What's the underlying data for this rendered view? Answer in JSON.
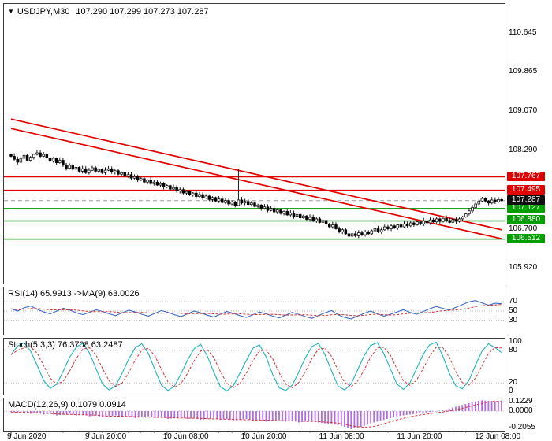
{
  "window": {
    "symbol_title": "USDJPY,M30",
    "ohlc_title": "107.290 107.299 107.273 107.287"
  },
  "colors": {
    "resistance": "#e00000",
    "support_line": "#009600",
    "support_tag": "#00a000",
    "candle": "#000000",
    "current_tag_bg": "#101010",
    "current_line": "#999999",
    "signal": "#d63333",
    "grid_dotted": "#b8b8b8"
  },
  "chart_data": [
    {
      "type": "candlestick",
      "symbol": "USDJPY",
      "timeframe": "M30",
      "y_axis_labels": [
        "110.645",
        "109.865",
        "109.070",
        "108.290",
        "106.700",
        "105.920"
      ],
      "resistance_levels": [
        "107.767",
        "107.495"
      ],
      "support_levels": [
        "107.127",
        "106.880",
        "106.512"
      ],
      "current_price": "107.287",
      "trendlines": [
        {
          "c1": 0,
          "p1": 108.93,
          "c2": 151,
          "p2": 106.7
        },
        {
          "c1": 0,
          "p1": 108.74,
          "c2": 151,
          "p2": 106.52
        }
      ],
      "x_labels": [
        {
          "text": "9 Jun 2020",
          "candle": 0
        },
        {
          "text": "9 Jun 20:00",
          "candle": 24
        },
        {
          "text": "10 Jun 08:00",
          "candle": 48
        },
        {
          "text": "10 Jun 20:00",
          "candle": 72
        },
        {
          "text": "11 Jun 08:00",
          "candle": 96
        },
        {
          "text": "11 Jun 20:00",
          "candle": 120
        },
        {
          "text": "12 Jun 08:00",
          "candle": 144
        }
      ],
      "open_first": 108.22,
      "wick_base": 0.018,
      "wick_step": 0.007,
      "overrides": {
        "70": {
          "high": 107.92
        }
      },
      "closes": [
        108.18,
        108.12,
        108.06,
        108.14,
        108.2,
        108.1,
        108.16,
        108.22,
        108.25,
        108.18,
        108.22,
        108.15,
        108.08,
        108.14,
        108.05,
        108.1,
        108.0,
        107.94,
        108.0,
        107.92,
        107.96,
        107.88,
        107.93,
        107.85,
        107.9,
        107.95,
        107.88,
        107.92,
        107.85,
        107.9,
        107.93,
        107.86,
        107.89,
        107.82,
        107.85,
        107.78,
        107.81,
        107.74,
        107.77,
        107.7,
        107.73,
        107.66,
        107.7,
        107.63,
        107.66,
        107.6,
        107.63,
        107.56,
        107.59,
        107.52,
        107.55,
        107.48,
        107.51,
        107.44,
        107.47,
        107.4,
        107.44,
        107.37,
        107.41,
        107.34,
        107.38,
        107.31,
        107.35,
        107.28,
        107.32,
        107.25,
        107.29,
        107.22,
        107.26,
        107.19,
        107.3,
        107.24,
        107.27,
        107.21,
        107.24,
        107.17,
        107.2,
        107.13,
        107.16,
        107.09,
        107.13,
        107.06,
        107.1,
        107.03,
        107.07,
        107.0,
        107.04,
        106.97,
        107.01,
        106.94,
        106.98,
        106.91,
        106.95,
        106.88,
        106.92,
        106.85,
        106.89,
        106.82,
        106.76,
        106.8,
        106.72,
        106.66,
        106.7,
        106.62,
        106.57,
        106.62,
        106.58,
        106.64,
        106.6,
        106.66,
        106.62,
        106.68,
        106.72,
        106.66,
        106.7,
        106.76,
        106.72,
        106.78,
        106.74,
        106.8,
        106.76,
        106.82,
        106.78,
        106.84,
        106.8,
        106.86,
        106.82,
        106.88,
        106.84,
        106.9,
        106.86,
        106.92,
        106.87,
        106.93,
        106.89,
        106.85,
        106.91,
        106.87,
        106.92,
        106.96,
        107.02,
        107.08,
        107.15,
        107.22,
        107.28,
        107.33,
        107.28,
        107.24,
        107.3,
        107.26,
        107.31,
        107.287
      ]
    },
    {
      "type": "line",
      "name": "RSI",
      "label": "RSI(14) 65.9913 ->MA(9) 63.0026",
      "range": [
        0,
        100
      ],
      "grid": [
        70,
        50,
        30
      ],
      "scale_labels": [
        "70",
        "50",
        "30"
      ],
      "color": "#3b6bc7",
      "signal_window": 9,
      "values": [
        55,
        50,
        57,
        61,
        54,
        48,
        44,
        50,
        56,
        52,
        46,
        42,
        47,
        53,
        49,
        44,
        40,
        46,
        52,
        48,
        43,
        39,
        45,
        51,
        47,
        42,
        38,
        44,
        50,
        46,
        41,
        37,
        43,
        49,
        45,
        40,
        36,
        42,
        48,
        44,
        39,
        35,
        41,
        47,
        43,
        38,
        34,
        40,
        46,
        51,
        42,
        36,
        33,
        39,
        45,
        50,
        44,
        39,
        43,
        48,
        53,
        47,
        43,
        49,
        55,
        60,
        56,
        52,
        58,
        64,
        70,
        73,
        68,
        63,
        67,
        66
      ]
    },
    {
      "type": "line",
      "name": "Stochastic",
      "label": "Stoch(5,3,3) 76.3708 63.2487",
      "range": [
        0,
        100
      ],
      "grid": [
        80,
        20
      ],
      "scale_labels": [
        "100",
        "80",
        "20",
        "0"
      ],
      "color": "#1fb3bd",
      "signal_window": 3,
      "values": [
        72,
        88,
        94,
        78,
        52,
        24,
        10,
        18,
        42,
        68,
        86,
        93,
        75,
        46,
        18,
        7,
        15,
        38,
        64,
        85,
        92,
        74,
        44,
        16,
        6,
        14,
        37,
        62,
        83,
        91,
        70,
        40,
        13,
        5,
        15,
        38,
        62,
        84,
        90,
        68,
        36,
        11,
        6,
        16,
        40,
        66,
        87,
        93,
        72,
        42,
        14,
        7,
        18,
        44,
        70,
        89,
        94,
        74,
        46,
        18,
        8,
        20,
        46,
        72,
        90,
        95,
        70,
        38,
        15,
        9,
        24,
        52,
        78,
        92,
        85,
        76
      ]
    },
    {
      "type": "macd_histogram",
      "name": "MACD",
      "label": "MACD(12,26,9) 0.1079 0.0914",
      "range": [
        -0.215,
        0.135
      ],
      "grid": [
        0
      ],
      "scale_labels": [
        "0.1229",
        "0.0000",
        "-0.2055"
      ],
      "color": "#b36ae2",
      "signal_window": 9,
      "values": [
        -0.01,
        -0.02,
        -0.01,
        -0.03,
        -0.02,
        -0.04,
        -0.03,
        -0.05,
        -0.04,
        -0.03,
        -0.05,
        -0.04,
        -0.06,
        -0.05,
        -0.07,
        -0.06,
        -0.05,
        -0.07,
        -0.06,
        -0.08,
        -0.07,
        -0.06,
        -0.08,
        -0.07,
        -0.09,
        -0.08,
        -0.07,
        -0.09,
        -0.08,
        -0.1,
        -0.09,
        -0.08,
        -0.1,
        -0.09,
        -0.11,
        -0.1,
        -0.09,
        -0.11,
        -0.1,
        -0.12,
        -0.11,
        -0.1,
        -0.12,
        -0.11,
        -0.13,
        -0.12,
        -0.11,
        -0.13,
        -0.14,
        -0.15,
        -0.16,
        -0.18,
        -0.2055,
        -0.19,
        -0.17,
        -0.14,
        -0.12,
        -0.1,
        -0.08,
        -0.06,
        -0.05,
        -0.04,
        -0.03,
        -0.02,
        -0.01,
        0.0,
        0.01,
        0.03,
        0.05,
        0.07,
        0.09,
        0.11,
        0.1229,
        0.118,
        0.112,
        0.1079
      ]
    }
  ]
}
